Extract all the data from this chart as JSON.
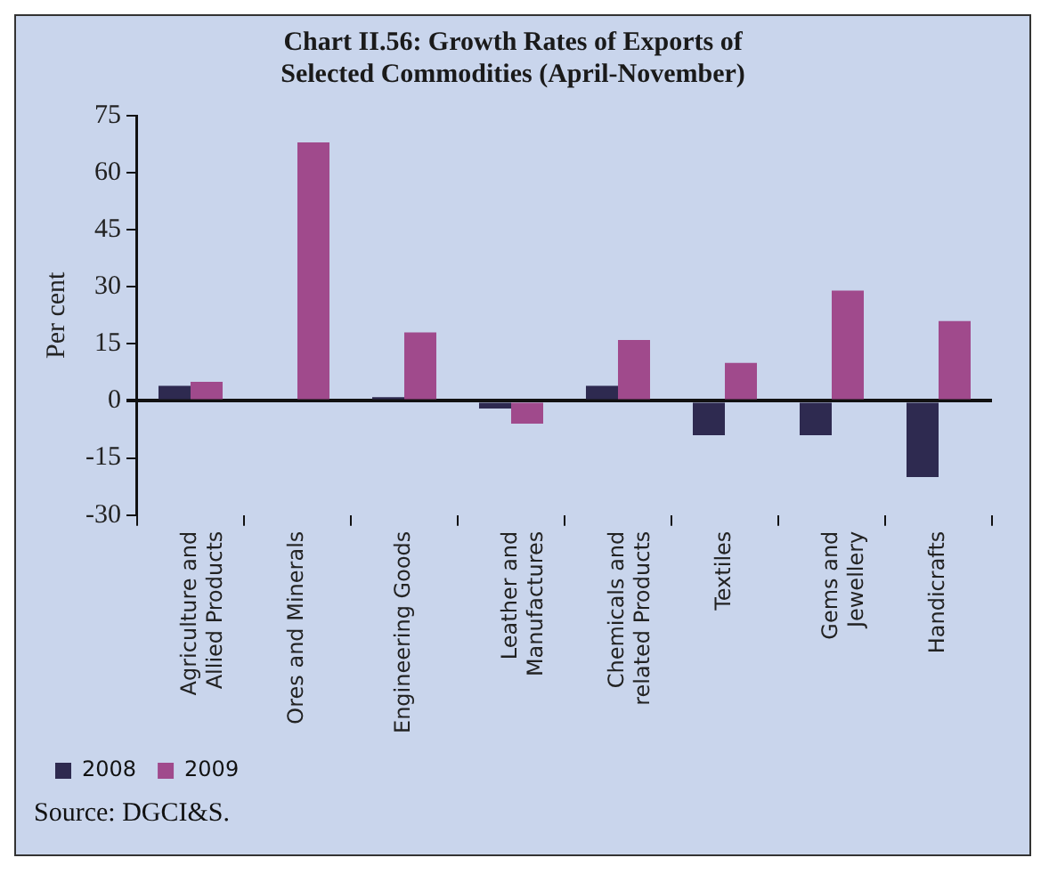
{
  "chart_data": {
    "type": "bar",
    "title": "Chart II.56: Growth Rates of Exports of Selected Commodities (April-November)",
    "categories": [
      "Agriculture and Allied Products",
      "Ores and Minerals",
      "Engineering Goods",
      "Leather and Manufactures",
      "Chemicals and related Products",
      "Textiles",
      "Gems and Jewellery",
      "Handicrafts"
    ],
    "series": [
      {
        "name": "2008",
        "color": "#2e2a50",
        "values": [
          4,
          0,
          1,
          -2,
          4,
          -9,
          -9,
          -20
        ]
      },
      {
        "name": "2009",
        "color": "#a04a8c",
        "values": [
          5,
          68,
          18,
          -6,
          16,
          10,
          29,
          21
        ]
      }
    ],
    "ylabel": "Per cent",
    "ylim": [
      -30,
      75
    ],
    "yticks": [
      -30,
      -15,
      0,
      15,
      30,
      45,
      60,
      75
    ],
    "legend": "bottom left",
    "annotations": [
      "Source: DGCI&S."
    ]
  }
}
